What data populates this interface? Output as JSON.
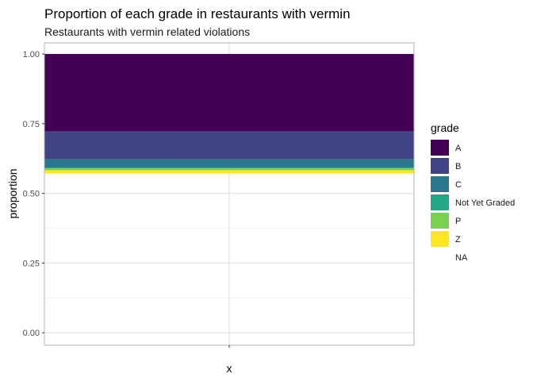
{
  "chart_data": {
    "type": "bar",
    "stacked": true,
    "position": "fill",
    "title": "Proportion of each grade in restaurants with vermin",
    "subtitle": "Restaurants with vermin related violations",
    "xlabel": "x",
    "ylabel": "proportion",
    "categories": [
      ""
    ],
    "ylim": [
      -0.045,
      1.04
    ],
    "yticks": [
      0.0,
      0.25,
      0.5,
      0.75,
      1.0
    ],
    "ytick_labels": [
      "0.00",
      "0.25",
      "0.50",
      "0.75",
      "1.00"
    ],
    "grid": true,
    "legend": {
      "title": "grade",
      "position": "right"
    },
    "series": [
      {
        "name": "A",
        "values": [
          0.278
        ],
        "color": "#440154"
      },
      {
        "name": "B",
        "values": [
          0.1
        ],
        "color": "#414487"
      },
      {
        "name": "C",
        "values": [
          0.03
        ],
        "color": "#2A788E"
      },
      {
        "name": "Not Yet Graded",
        "values": [
          0.002
        ],
        "color": "#22A884"
      },
      {
        "name": "P",
        "values": [
          0.007
        ],
        "color": "#7AD151"
      },
      {
        "name": "Z",
        "values": [
          0.012
        ],
        "color": "#FDE725"
      },
      {
        "name": "NA",
        "values": [
          0.571
        ],
        "color": null
      }
    ]
  }
}
